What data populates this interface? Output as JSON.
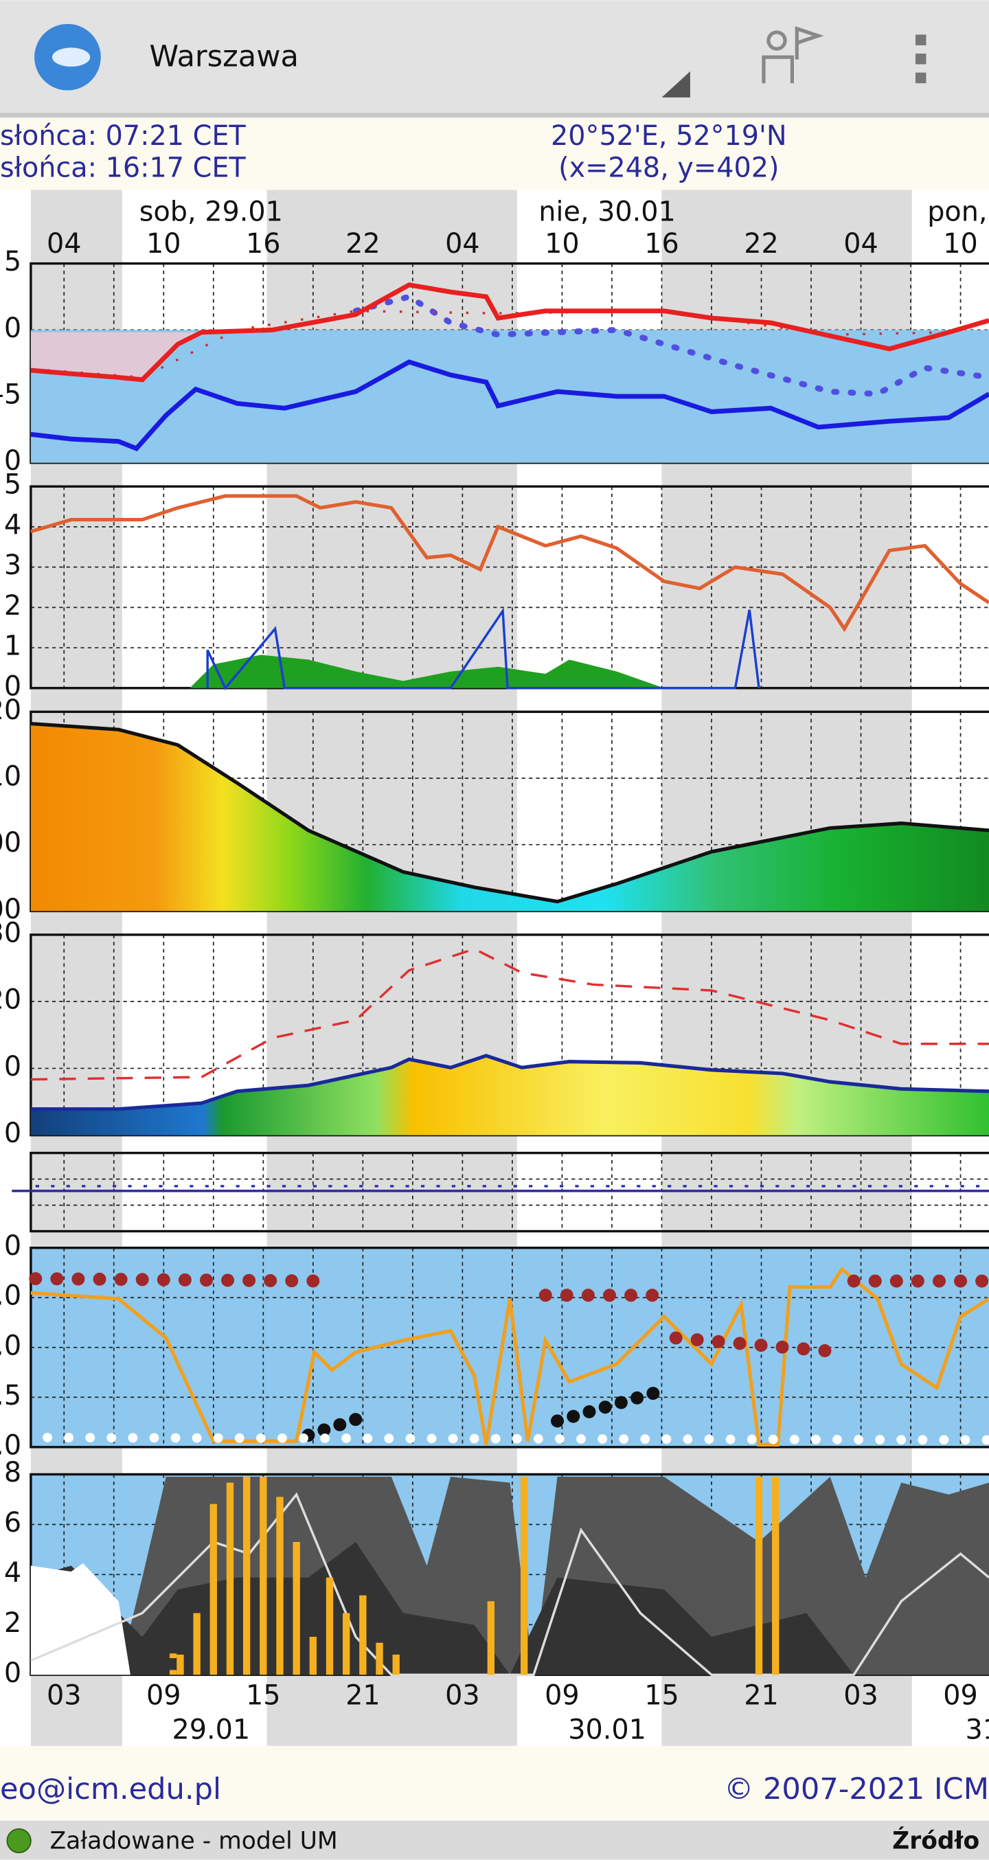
{
  "app_bar": {
    "title": "Warszawa"
  },
  "info": {
    "sunrise": "słońca: 07:21 CET",
    "sunset": "słońca: 16:17 CET",
    "coords": "20°52'E, 52°19'N",
    "grid": "(x=248,  y=402)"
  },
  "top_axis": {
    "days": [
      "sob, 29.01",
      "nie, 30.01",
      "pon,"
    ],
    "hours": [
      "04",
      "10",
      "16",
      "22",
      "04",
      "10",
      "16",
      "22",
      "04",
      "10"
    ]
  },
  "panels": [
    {
      "labels": [
        "5",
        "0",
        "-5",
        "0"
      ]
    },
    {
      "labels": [
        "5",
        "4",
        "3",
        "2",
        "1",
        "0"
      ]
    },
    {
      "labels": [
        "20",
        "10",
        "00",
        "00"
      ]
    },
    {
      "labels": [
        "30",
        "20",
        "0",
        "0"
      ]
    },
    {
      "labels": []
    },
    {
      "labels": [
        "0",
        ".0",
        ".0",
        ".5",
        ".0"
      ]
    },
    {
      "labels": [
        "8",
        "6",
        "4",
        "2",
        "0"
      ]
    }
  ],
  "bottom_axis": {
    "hours": [
      "03",
      "09",
      "15",
      "21",
      "03",
      "09",
      "15",
      "21",
      "03",
      "09"
    ],
    "dates": [
      "29.01",
      "30.01",
      "31"
    ]
  },
  "footer": {
    "email": "eo@icm.edu.pl",
    "copyright": "© 2007-2021 ICM"
  },
  "status": {
    "text": "Załadowane - model UM",
    "source": "Źródło"
  }
}
